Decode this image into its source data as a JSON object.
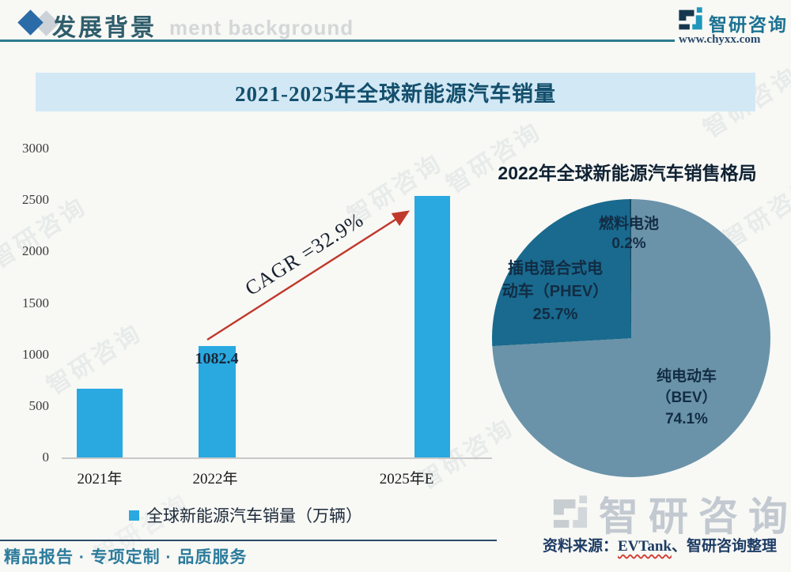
{
  "header": {
    "section_title": "发展背景",
    "background_watermark_text": "ment background",
    "brand_name": "智研咨询",
    "brand_url": "www.chyxx.com"
  },
  "banner": {
    "title": "2021-2025年全球新能源汽车销量"
  },
  "chart_data": [
    {
      "type": "bar",
      "title": "2021-2025年全球新能源汽车销量",
      "categories": [
        "2021年",
        "2022年",
        "2025年E"
      ],
      "values": [
        670,
        1082.4,
        2540
      ],
      "value_labels": [
        "",
        "1082.4",
        ""
      ],
      "ylim": [
        0,
        3000
      ],
      "yticks": [
        3000,
        2500,
        2000,
        1500,
        1000,
        500,
        0
      ],
      "grid": false,
      "bar_color": "#29a9e0",
      "legend": [
        {
          "name": "全球新能源汽车销量（万辆）",
          "color": "#29a9e0"
        }
      ],
      "legend_position": "bottom",
      "annotation": {
        "text": "CAGR =32.9%",
        "arrow_color": "#c0392b"
      }
    },
    {
      "type": "pie",
      "title": "2022年全球新能源汽车销售格局",
      "direction": "clockwise",
      "start_angle_deg": 0,
      "slices": [
        {
          "label": "纯电动车（BEV）",
          "value": 74.1,
          "color": "#6a93a9",
          "display_lines": [
            "纯电动车",
            "（BEV）",
            "74.1%"
          ]
        },
        {
          "label": "插电混合式电动车（PHEV）",
          "value": 25.7,
          "color": "#196a8e",
          "display_lines": [
            "插电混合式电",
            "动车（PHEV）",
            "25.7%"
          ]
        },
        {
          "label": "燃料电池",
          "value": 0.2,
          "color": "#174b66",
          "display_lines": [
            "燃料电池",
            "0.2%"
          ]
        }
      ]
    }
  ],
  "watermark": {
    "brand": "智研咨询"
  },
  "source_line": {
    "prefix": "资料来源：",
    "source_name": "EVTank",
    "suffix": "、智研咨询整理"
  },
  "footer": {
    "slogan": "精品报告 · 专项定制 · 品质服务"
  },
  "colors": {
    "bar": "#29a9e0",
    "banner_bg": "#d2e8f5",
    "accent_teal": "#2c7b8e",
    "arrow_red": "#c0392b"
  }
}
